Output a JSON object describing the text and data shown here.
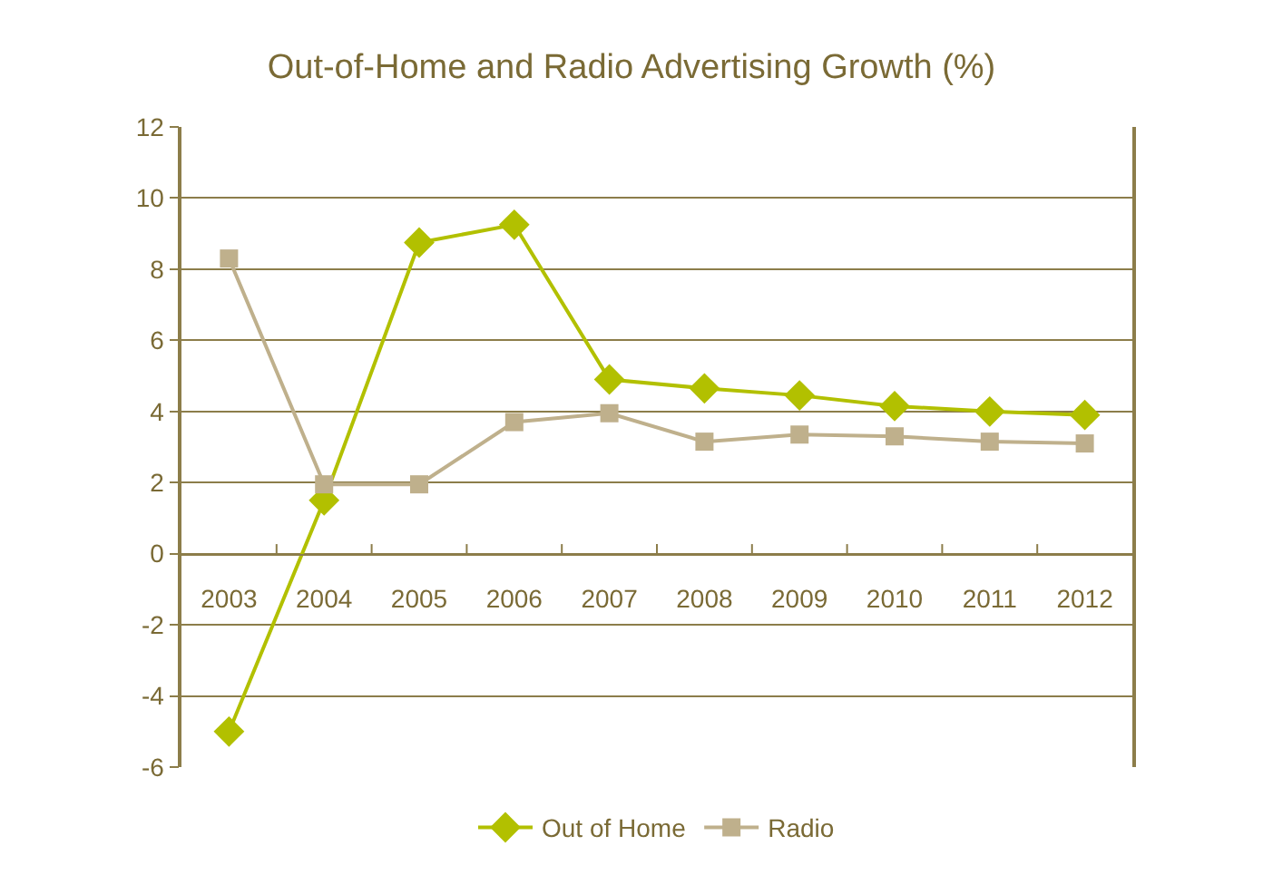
{
  "chart_data": {
    "type": "line",
    "title": "Out-of-Home and Radio Advertising Growth (%)",
    "categories": [
      "2003",
      "2004",
      "2005",
      "2006",
      "2007",
      "2008",
      "2009",
      "2010",
      "2011",
      "2012"
    ],
    "series": [
      {
        "name": "Out of Home",
        "color": "#b2c000",
        "marker": "diamond",
        "values": [
          -5.0,
          1.5,
          8.75,
          9.25,
          4.9,
          4.65,
          4.45,
          4.15,
          4.0,
          3.9
        ]
      },
      {
        "name": "Radio",
        "color": "#bfb08c",
        "marker": "square",
        "values": [
          8.3,
          1.95,
          1.95,
          3.7,
          3.95,
          3.15,
          3.35,
          3.3,
          3.15,
          3.1
        ]
      }
    ],
    "ylim": [
      -6,
      12
    ],
    "yticks": [
      -6,
      -4,
      -2,
      0,
      2,
      4,
      6,
      8,
      10,
      12
    ],
    "grid": "y",
    "legend": "bottom",
    "line_style": "solid"
  }
}
